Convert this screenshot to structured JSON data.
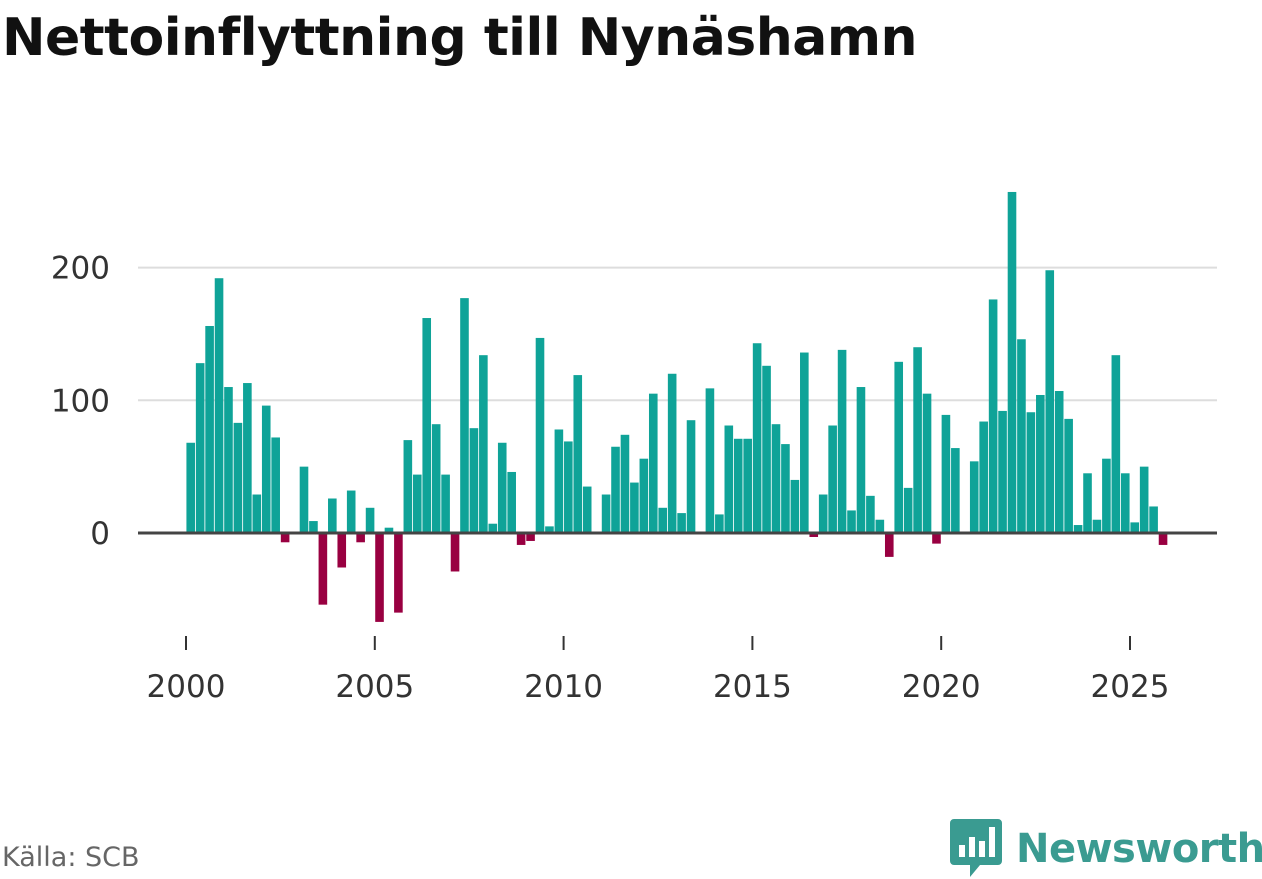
{
  "chart_data": {
    "type": "bar",
    "title": "Nettoinflyttning till Nynäshamn",
    "xlabel": "",
    "ylabel": "",
    "ylim": [
      -70,
      260
    ],
    "yticks": [
      0,
      100,
      200
    ],
    "xticks": [
      2000,
      2005,
      2010,
      2015,
      2020,
      2025
    ],
    "xlim": [
      1999.61,
      2027.25
    ],
    "period": "quarterly",
    "positive_color": "#0fa398",
    "negative_color": "#990041",
    "zero_line_color": "#444444",
    "grid_color": "#dddddd",
    "tick_label_color": "#333333",
    "x": [
      2000.125,
      2000.375,
      2000.625,
      2000.875,
      2001.125,
      2001.375,
      2001.625,
      2001.875,
      2002.125,
      2002.375,
      2002.625,
      2002.875,
      2003.125,
      2003.375,
      2003.625,
      2003.875,
      2004.125,
      2004.375,
      2004.625,
      2004.875,
      2005.125,
      2005.375,
      2005.625,
      2005.875,
      2006.125,
      2006.375,
      2006.625,
      2006.875,
      2007.125,
      2007.375,
      2007.625,
      2007.875,
      2008.125,
      2008.375,
      2008.625,
      2008.875,
      2009.125,
      2009.375,
      2009.625,
      2009.875,
      2010.125,
      2010.375,
      2010.625,
      2010.875,
      2011.125,
      2011.375,
      2011.625,
      2011.875,
      2012.125,
      2012.375,
      2012.625,
      2012.875,
      2013.125,
      2013.375,
      2013.625,
      2013.875,
      2014.125,
      2014.375,
      2014.625,
      2014.875,
      2015.125,
      2015.375,
      2015.625,
      2015.875,
      2016.125,
      2016.375,
      2016.625,
      2016.875,
      2017.125,
      2017.375,
      2017.625,
      2017.875,
      2018.125,
      2018.375,
      2018.625,
      2018.875,
      2019.125,
      2019.375,
      2019.625,
      2019.875,
      2020.125,
      2020.375,
      2020.625,
      2020.875,
      2021.125,
      2021.375,
      2021.625,
      2021.875,
      2022.125,
      2022.375,
      2022.625,
      2022.875,
      2023.125,
      2023.375,
      2023.625,
      2023.875,
      2024.125,
      2024.375,
      2024.625,
      2024.875,
      2025.125,
      2025.375,
      2025.625,
      2025.875
    ],
    "values": [
      68,
      128,
      156,
      192,
      110,
      83,
      113,
      29,
      96,
      72,
      -7,
      0,
      50,
      9,
      -54,
      26,
      -26,
      32,
      -7,
      19,
      -67,
      4,
      -60,
      70,
      44,
      162,
      82,
      44,
      -29,
      177,
      79,
      134,
      7,
      68,
      46,
      -9,
      -6,
      147,
      5,
      78,
      69,
      119,
      35,
      0,
      29,
      65,
      74,
      38,
      56,
      105,
      19,
      120,
      15,
      85,
      0,
      109,
      14,
      81,
      71,
      71,
      143,
      126,
      82,
      67,
      40,
      136,
      -3,
      29,
      81,
      138,
      17,
      110,
      28,
      10,
      -18,
      129,
      34,
      140,
      105,
      -8,
      89,
      64,
      0,
      54,
      84,
      176,
      92,
      257,
      146,
      91,
      104,
      198,
      107,
      86,
      6,
      45,
      10,
      56,
      134,
      45,
      8,
      50,
      20,
      -9
    ]
  },
  "source": "Källa: SCB",
  "brand": {
    "name": "Newsworthy",
    "logo_icon": "newsworthy-chart-bubble-icon",
    "color": "#3a9b91"
  }
}
